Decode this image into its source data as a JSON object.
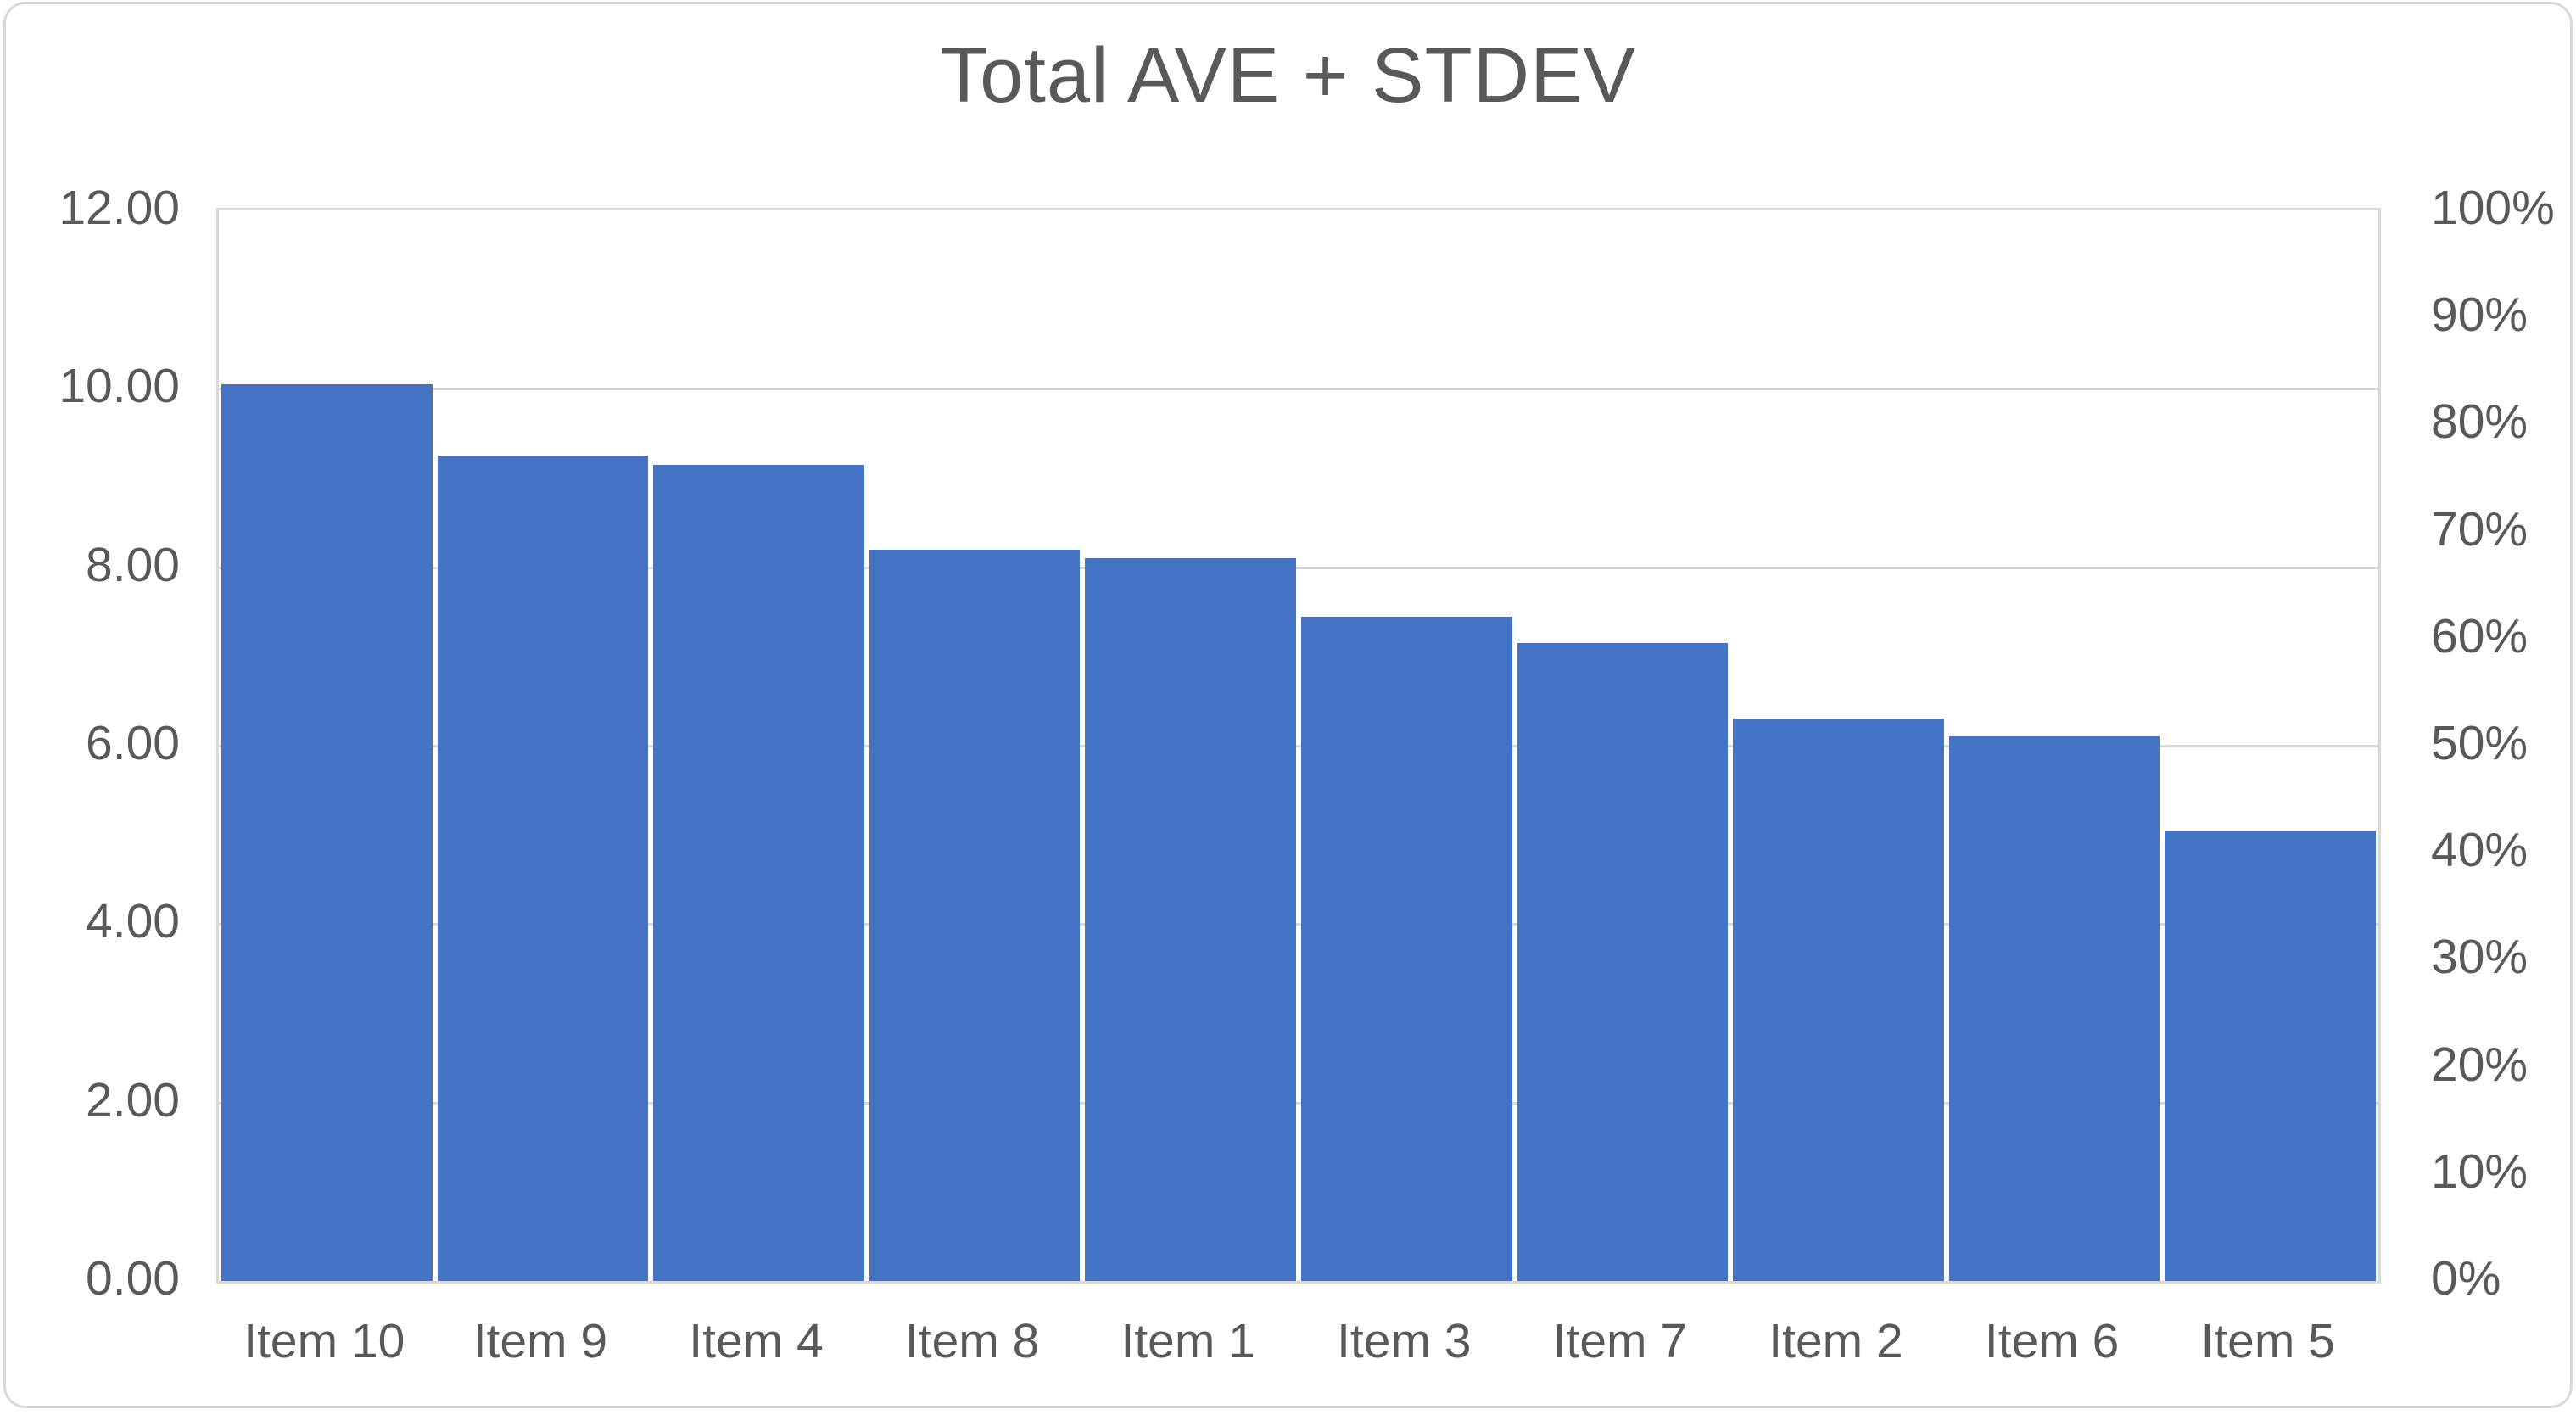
{
  "chart_data": {
    "type": "bar",
    "title": "Total AVE + STDEV",
    "categories": [
      "Item 10",
      "Item 9",
      "Item 4",
      "Item 8",
      "Item 1",
      "Item 3",
      "Item 7",
      "Item 2",
      "Item 6",
      "Item 5"
    ],
    "values": [
      10.05,
      9.25,
      9.15,
      8.2,
      8.1,
      7.45,
      7.15,
      6.3,
      6.1,
      5.05
    ],
    "series_sorted_descending": true,
    "left_axis": {
      "min": 0,
      "max": 12,
      "step": 2,
      "tick_labels": [
        "0.00",
        "2.00",
        "4.00",
        "6.00",
        "8.00",
        "10.00",
        "12.00"
      ]
    },
    "right_axis": {
      "min": 0,
      "max": 100,
      "step": 10,
      "tick_labels": [
        "0%",
        "10%",
        "20%",
        "30%",
        "40%",
        "50%",
        "60%",
        "70%",
        "80%",
        "90%",
        "100%"
      ]
    },
    "xlabel": "",
    "ylabel": "",
    "legend": "none",
    "grid": true,
    "colors": {
      "bar": "#4472c4",
      "gridline": "#d9d9d9",
      "axis_text": "#595959",
      "title_text": "#595959",
      "background": "#ffffff"
    }
  }
}
